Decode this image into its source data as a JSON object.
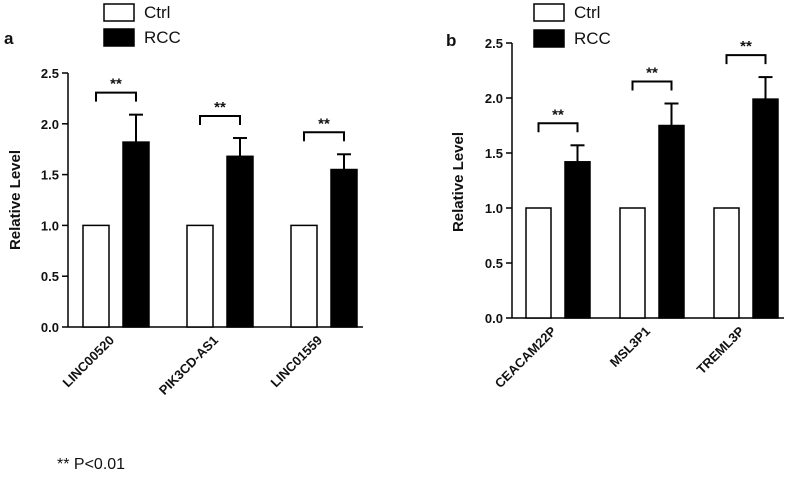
{
  "chart_data": [
    {
      "panel_label": "a",
      "type": "bar",
      "categories": [
        "LINC00520",
        "PIK3CD-AS1",
        "LINC01559"
      ],
      "series": [
        {
          "name": "Ctrl",
          "color": "#ffffff",
          "values": [
            1.0,
            1.0,
            1.0
          ],
          "errors": [
            0,
            0,
            0
          ]
        },
        {
          "name": "RCC",
          "color": "#000000",
          "values": [
            1.82,
            1.68,
            1.55
          ],
          "errors": [
            0.27,
            0.18,
            0.15
          ]
        }
      ],
      "significance": [
        "**",
        "**",
        "**"
      ],
      "ylabel": "Relative Level",
      "ylim": [
        0,
        2.5
      ],
      "yticks": [
        "0.0",
        "0.5",
        "1.0",
        "1.5",
        "2.0",
        "2.5"
      ],
      "grid": false
    },
    {
      "panel_label": "b",
      "type": "bar",
      "categories": [
        "CEACAM22P",
        "MSL3P1",
        "TREML3P"
      ],
      "series": [
        {
          "name": "Ctrl",
          "color": "#ffffff",
          "values": [
            1.0,
            1.0,
            1.0
          ],
          "errors": [
            0,
            0,
            0
          ]
        },
        {
          "name": "RCC",
          "color": "#000000",
          "values": [
            1.42,
            1.75,
            1.99
          ],
          "errors": [
            0.15,
            0.2,
            0.2
          ]
        }
      ],
      "significance": [
        "**",
        "**",
        "**"
      ],
      "ylabel": "Relative Level",
      "ylim": [
        0,
        2.5
      ],
      "yticks": [
        "0.0",
        "0.5",
        "1.0",
        "1.5",
        "2.0",
        "2.5"
      ],
      "grid": false
    }
  ],
  "legend": [
    {
      "label": "Ctrl",
      "color": "#ffffff"
    },
    {
      "label": "RCC",
      "color": "#000000"
    }
  ],
  "footnote": "** P<0.01"
}
